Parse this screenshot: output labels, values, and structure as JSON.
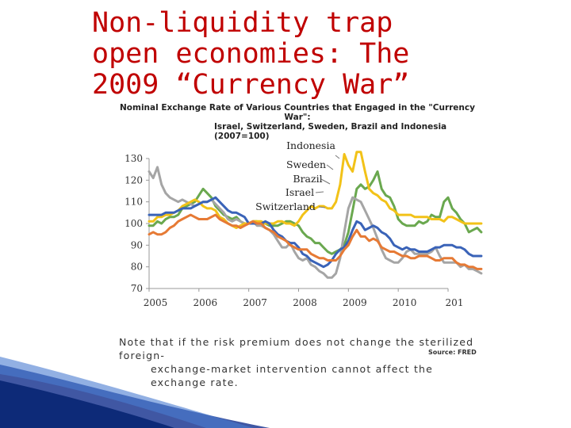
{
  "slide_title": "Non-liquidity trap open economies: The 2009 “Currency War”",
  "note": {
    "line1": "Note that if the risk premium does not change the sterilized foreign-",
    "line2": "exchange-market intervention cannot affect the exchange rate."
  },
  "source": "Source: FRED",
  "colors": {
    "title": "#c00000",
    "israel": "#3a63b8",
    "switzerland": "#e67a35",
    "sweden": "#a5a5a5",
    "brazil": "#f2c218",
    "indonesia": "#6aa84f"
  },
  "chart_data": {
    "type": "line",
    "title_line1": "Nominal Exchange Rate of Various Countries that Engaged in the \"Currency War\":",
    "title_line2": "Israel, Switzerland, Sweden, Brazil and Indonesia (2007=100)",
    "x_start": 2005.0,
    "x_step": 0.0833333,
    "xlim": [
      2005,
      2011
    ],
    "ylim": [
      70,
      130
    ],
    "yticks": [
      70,
      80,
      90,
      100,
      110,
      120,
      130
    ],
    "xtick_labels": [
      "2005",
      "2006",
      "2007",
      "2008",
      "2009",
      "2010",
      "201"
    ],
    "grid": false,
    "legend": "labels with leader lines, top-right",
    "series": [
      {
        "name": "Indonesia",
        "color_key": "indonesia",
        "values": [
          99,
          99,
          101,
          100,
          102,
          103,
          103,
          104,
          107,
          108,
          109,
          110,
          113,
          116,
          114,
          112,
          108,
          106,
          104,
          103,
          102,
          103,
          101,
          100,
          100,
          101,
          101,
          100,
          100,
          99,
          99,
          99,
          100,
          101,
          101,
          100,
          99,
          96,
          94,
          93,
          91,
          91,
          89,
          87,
          86,
          87,
          88,
          90,
          96,
          106,
          116,
          118,
          116,
          117,
          120,
          124,
          116,
          113,
          112,
          108,
          102,
          100,
          99,
          99,
          99,
          101,
          100,
          101,
          104,
          103,
          103,
          110,
          112,
          107,
          105,
          102,
          100,
          96,
          97,
          98,
          96
        ]
      },
      {
        "name": "Sweden",
        "color_key": "sweden",
        "values": [
          124,
          121,
          126,
          118,
          114,
          112,
          111,
          110,
          111,
          110,
          109,
          108,
          109,
          110,
          110,
          111,
          109,
          107,
          105,
          102,
          101,
          102,
          101,
          100,
          100,
          101,
          99,
          99,
          98,
          97,
          95,
          92,
          89,
          89,
          91,
          87,
          84,
          83,
          84,
          81,
          80,
          78,
          77,
          75,
          75,
          77,
          84,
          96,
          107,
          112,
          111,
          110,
          106,
          102,
          98,
          93,
          88,
          84,
          83,
          82,
          82,
          84,
          87,
          88,
          86,
          86,
          86,
          86,
          87,
          89,
          85,
          82,
          82,
          82,
          82,
          80,
          81,
          79,
          79,
          78,
          77
        ]
      },
      {
        "name": "Brazil",
        "color_key": "brazil",
        "values": [
          101,
          101,
          103,
          103,
          104,
          104,
          105,
          106,
          108,
          109,
          110,
          111,
          110,
          108,
          107,
          107,
          106,
          103,
          102,
          100,
          99,
          98,
          99,
          100,
          100,
          101,
          101,
          101,
          100,
          100,
          100,
          101,
          101,
          100,
          100,
          99,
          101,
          104,
          106,
          108,
          107,
          108,
          108,
          107,
          107,
          110,
          118,
          132,
          127,
          124,
          133,
          133,
          124,
          116,
          114,
          113,
          111,
          110,
          107,
          106,
          104,
          104,
          104,
          104,
          103,
          103,
          103,
          103,
          102,
          102,
          102,
          101,
          103,
          103,
          102,
          101,
          100,
          100,
          100,
          100,
          100
        ]
      },
      {
        "name": "Israel",
        "color_key": "israel",
        "values": [
          104,
          104,
          104,
          104,
          105,
          105,
          105,
          106,
          107,
          107,
          107,
          108,
          109,
          110,
          110,
          111,
          112,
          110,
          108,
          106,
          105,
          105,
          104,
          103,
          100,
          100,
          100,
          100,
          101,
          100,
          97,
          95,
          94,
          92,
          91,
          91,
          89,
          86,
          85,
          83,
          82,
          81,
          80,
          81,
          83,
          86,
          88,
          89,
          92,
          97,
          101,
          100,
          97,
          98,
          99,
          98,
          96,
          95,
          93,
          90,
          89,
          88,
          89,
          88,
          88,
          87,
          87,
          87,
          88,
          89,
          89,
          90,
          90,
          90,
          89,
          89,
          88,
          86,
          85,
          85,
          85
        ]
      },
      {
        "name": "Switzerland",
        "color_key": "switzerland",
        "values": [
          95,
          96,
          95,
          95,
          96,
          98,
          99,
          101,
          102,
          103,
          104,
          103,
          102,
          102,
          102,
          103,
          104,
          102,
          101,
          100,
          99,
          99,
          98,
          99,
          100,
          101,
          100,
          100,
          98,
          97,
          96,
          94,
          93,
          92,
          90,
          89,
          88,
          88,
          88,
          86,
          85,
          84,
          84,
          83,
          83,
          83,
          85,
          88,
          90,
          94,
          97,
          94,
          94,
          92,
          93,
          92,
          89,
          88,
          87,
          87,
          86,
          85,
          85,
          84,
          84,
          85,
          85,
          85,
          84,
          83,
          83,
          84,
          84,
          84,
          82,
          81,
          81,
          80,
          80,
          79,
          79
        ]
      }
    ]
  }
}
